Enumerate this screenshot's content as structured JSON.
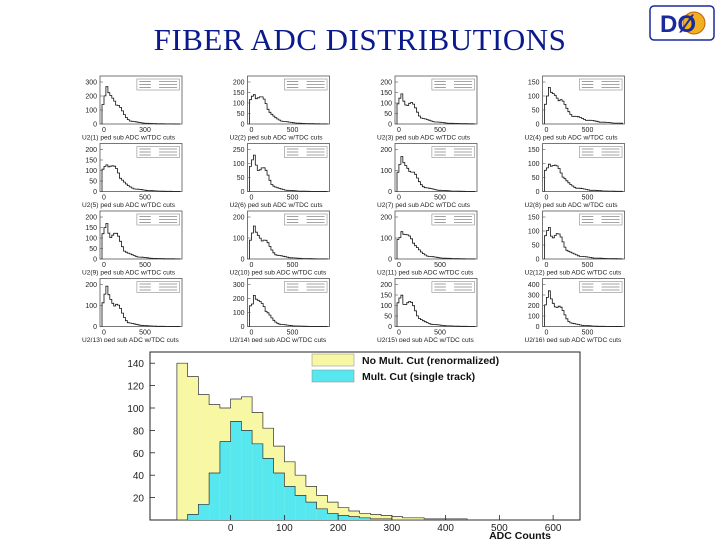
{
  "slide": {
    "title": "FIBER ADC DISTRIBUTIONS",
    "logo_text": "DØ"
  },
  "chart_data": [
    {
      "type": "bar",
      "role": "small-multiples",
      "panels": [
        {
          "caption": "U2(1) ped sub ADC w/TDC cuts",
          "yticks": [
            "300",
            "200",
            "100",
            "0"
          ],
          "xticks": [
            "0",
            "300"
          ],
          "ymax": 300,
          "peak": 250,
          "tail": 0.3
        },
        {
          "caption": "U2(2) ped sub ADC w/TDC cuts",
          "yticks": [
            "200",
            "150",
            "100",
            "50",
            "0"
          ],
          "xticks": [
            "0",
            "500"
          ],
          "ymax": 200,
          "peak": 160,
          "tail": 0.35
        },
        {
          "caption": "U2(3) ped sub ADC w/TDC cuts",
          "yticks": [
            "200",
            "150",
            "100",
            "50",
            "0"
          ],
          "xticks": [
            "0",
            "500"
          ],
          "ymax": 200,
          "peak": 130,
          "tail": 0.4
        },
        {
          "caption": "U2(4) ped sub ADC w/TDC cuts",
          "yticks": [
            "150",
            "100",
            "50",
            "0"
          ],
          "xticks": [
            "0",
            "500"
          ],
          "ymax": 150,
          "peak": 120,
          "tail": 0.55
        },
        {
          "caption": "U2(5) ped sub ADC w/TDC cuts",
          "yticks": [
            "200",
            "150",
            "100",
            "50",
            "0"
          ],
          "xticks": [
            "0",
            "500"
          ],
          "ymax": 200,
          "peak": 150,
          "tail": 0.35
        },
        {
          "caption": "U2(6) ped sub ADC w/TDC cuts",
          "yticks": [
            "250",
            "100",
            "50",
            "0"
          ],
          "xticks": [
            "0",
            "500"
          ],
          "ymax": 250,
          "peak": 200,
          "tail": 0.3
        },
        {
          "caption": "U2(7) ped sub ADC w/TDC cuts",
          "yticks": [
            "200",
            "100",
            "0"
          ],
          "xticks": [
            "0",
            "500"
          ],
          "ymax": 200,
          "peak": 150,
          "tail": 0.35
        },
        {
          "caption": "U2(8) ped sub ADC w/TDC cuts",
          "yticks": [
            "150",
            "100",
            "50",
            "0"
          ],
          "xticks": [
            "0",
            "500"
          ],
          "ymax": 150,
          "peak": 110,
          "tail": 0.4
        },
        {
          "caption": "U2(9) ped sub ADC w/TDC cuts",
          "yticks": [
            "200",
            "150",
            "100",
            "50",
            "0"
          ],
          "xticks": [
            "0",
            "500"
          ],
          "ymax": 200,
          "peak": 160,
          "tail": 0.35
        },
        {
          "caption": "U2(10) ped sub ADC w/TDC cuts",
          "yticks": [
            "200",
            "100",
            "0"
          ],
          "xticks": [
            "0",
            "500"
          ],
          "ymax": 200,
          "peak": 140,
          "tail": 0.35
        },
        {
          "caption": "U2(11) ped sub ADC w/TDC cuts",
          "yticks": [
            "200",
            "100",
            "0"
          ],
          "xticks": [
            "0",
            "500"
          ],
          "ymax": 200,
          "peak": 140,
          "tail": 0.35
        },
        {
          "caption": "U2(12) ped sub ADC w/TDC cuts",
          "yticks": [
            "150",
            "100",
            "50",
            "0"
          ],
          "xticks": [
            "0",
            "500"
          ],
          "ymax": 150,
          "peak": 110,
          "tail": 0.4
        },
        {
          "caption": "U2(13) ped sub ADC w/TDC cuts",
          "yticks": [
            "200",
            "100",
            "0"
          ],
          "xticks": [
            "0",
            "500"
          ],
          "ymax": 200,
          "peak": 170,
          "tail": 0.3
        },
        {
          "caption": "U2(14) ped sub ADC w/TDC cuts",
          "yticks": [
            "300",
            "200",
            "100",
            "0"
          ],
          "xticks": [
            "0",
            "500"
          ],
          "ymax": 300,
          "peak": 230,
          "tail": 0.3
        },
        {
          "caption": "U2(15) ped sub ADC w/TDC cuts",
          "yticks": [
            "200",
            "150",
            "100",
            "50",
            "0"
          ],
          "xticks": [
            "0",
            "500"
          ],
          "ymax": 200,
          "peak": 150,
          "tail": 0.35
        },
        {
          "caption": "U2(16) ped sub ADC w/TDC cuts",
          "yticks": [
            "400",
            "300",
            "200",
            "100",
            "0"
          ],
          "xticks": [
            "0",
            "500"
          ],
          "ymax": 400,
          "peak": 300,
          "tail": 0.3
        }
      ]
    },
    {
      "type": "bar",
      "role": "main-histogram",
      "xlabel": "ADC Counts",
      "ylabel": "",
      "xlim": [
        -150,
        650
      ],
      "ylim": [
        0,
        150
      ],
      "xticks": [
        "0",
        "100",
        "200",
        "300",
        "400",
        "500",
        "600"
      ],
      "yticks": [
        "140",
        "120",
        "100",
        "80",
        "60",
        "40",
        "20"
      ],
      "x": [
        -100,
        -80,
        -60,
        -40,
        -20,
        0,
        20,
        40,
        60,
        80,
        100,
        120,
        140,
        160,
        180,
        200,
        220,
        240,
        260,
        280,
        300,
        320,
        340,
        360,
        380,
        400,
        420,
        440,
        460,
        480,
        500,
        520,
        540,
        560,
        580
      ],
      "series": [
        {
          "name": "No Mult. Cut (renormalized)",
          "color": "#f8f7a4",
          "values": [
            140,
            128,
            112,
            103,
            100,
            108,
            110,
            96,
            82,
            66,
            52,
            40,
            30,
            22,
            16,
            11,
            8,
            6,
            5,
            4,
            3,
            2,
            2,
            1,
            1,
            1,
            1,
            0,
            0,
            0,
            0,
            0,
            0,
            0,
            0
          ]
        },
        {
          "name": "Mult. Cut (single track)",
          "color": "#56e8ee",
          "values": [
            0,
            5,
            14,
            42,
            70,
            88,
            80,
            68,
            55,
            42,
            30,
            22,
            16,
            10,
            6,
            4,
            3,
            2,
            1,
            1,
            0,
            0,
            0,
            0,
            0,
            0,
            0,
            0,
            0,
            0,
            0,
            0,
            0,
            0,
            0
          ]
        }
      ]
    }
  ]
}
